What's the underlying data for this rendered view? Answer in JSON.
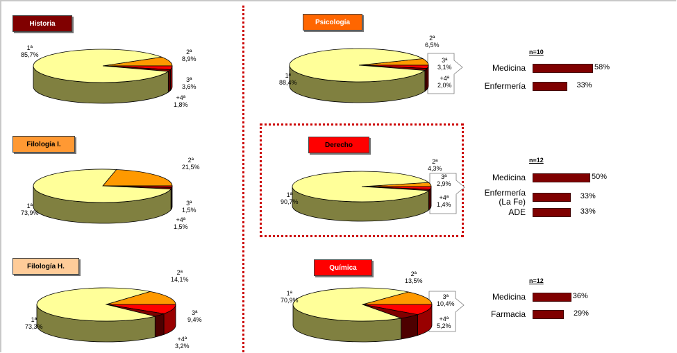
{
  "colors": {
    "first": "#ffff99",
    "second": "#ff9900",
    "third": "#ff0000",
    "fourth": "#800000",
    "side": "#808040",
    "bar": "#7f0000",
    "divider": "#cc0000"
  },
  "chart_data": [
    {
      "type": "pie",
      "title": "Historia",
      "title_bg": "#800000",
      "title_fg": "#ffffff",
      "labels": [
        "1ª\n85,7%",
        "2ª\n8,9%",
        "3ª\n3,6%",
        "+4ª\n1,8%"
      ],
      "values": [
        85.7,
        8.9,
        3.6,
        1.8
      ]
    },
    {
      "type": "pie",
      "title": "Filología I.",
      "title_bg": "#ff9933",
      "title_fg": "#000000",
      "labels": [
        "1ª\n73,9%",
        "2ª\n21,5%",
        "3ª\n1,5%",
        "+4ª\n1,5%"
      ],
      "values": [
        73.9,
        21.5,
        1.5,
        1.5
      ]
    },
    {
      "type": "pie",
      "title": "Filología H.",
      "title_bg": "#ffcc99",
      "title_fg": "#000000",
      "labels": [
        "1ª\n73,3%",
        "2ª\n14,1%",
        "3ª\n9,4%",
        "+4ª\n3,2%"
      ],
      "values": [
        73.3,
        14.1,
        9.4,
        3.2
      ]
    },
    {
      "type": "pie",
      "title": "Psicología",
      "title_bg": "#ff6600",
      "title_fg": "#ffffff",
      "labels": [
        "1ª\n88,4%",
        "2ª\n6,5%",
        "3ª\n3,1%",
        "+4ª\n2,0%"
      ],
      "values": [
        88.4,
        6.5,
        3.1,
        2.0
      ]
    },
    {
      "type": "pie",
      "title": "Derecho",
      "title_bg": "#ff0000",
      "title_fg": "#000000",
      "labels": [
        "1ª\n90,7%",
        "2ª\n4,3%",
        "3ª\n2,9%",
        "+4ª\n1,4%"
      ],
      "values": [
        90.7,
        4.3,
        2.9,
        1.4
      ]
    },
    {
      "type": "pie",
      "title": "Química",
      "title_bg": "#ff0000",
      "title_fg": "#ffffff",
      "labels": [
        "1ª\n70,9%",
        "2ª\n13,5%",
        "3ª\n10,4%",
        "+4ª\n5,2%"
      ],
      "values": [
        70.9,
        13.5,
        10.4,
        5.2
      ]
    },
    {
      "type": "bar",
      "n_label": "n=10",
      "categories": [
        "Medicina",
        "Enfermería"
      ],
      "values": [
        58,
        33
      ],
      "value_labels": [
        "58%",
        "33%"
      ]
    },
    {
      "type": "bar",
      "n_label": "n=12",
      "categories": [
        "Medicina",
        "Enfermería\n(La Fe)",
        "ADE"
      ],
      "values": [
        50,
        33,
        33
      ],
      "value_labels": [
        "50%",
        "33%",
        "33%"
      ]
    },
    {
      "type": "bar",
      "n_label": "n=12",
      "categories": [
        "Medicina",
        "Farmacia"
      ],
      "values": [
        36,
        29
      ],
      "value_labels": [
        "36%",
        "29%"
      ]
    }
  ]
}
